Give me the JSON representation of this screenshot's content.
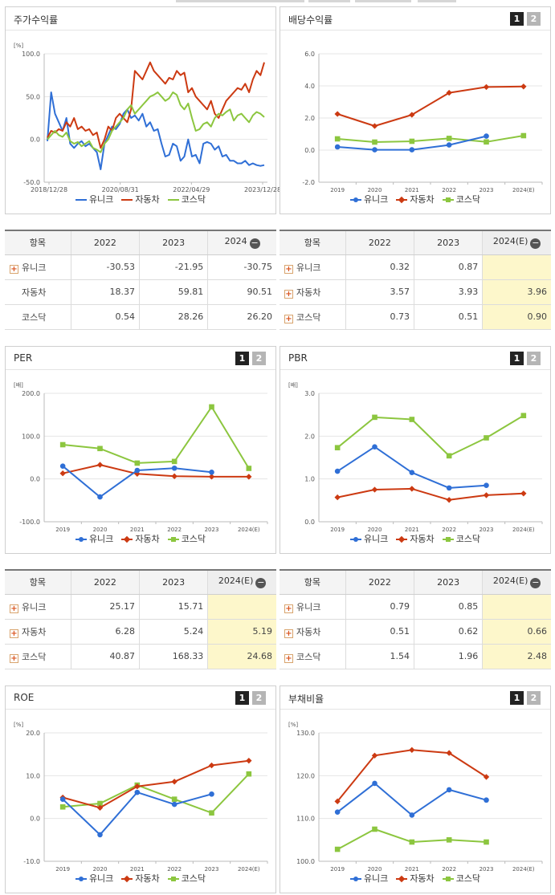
{
  "colors": {
    "unique": "#2f6fd6",
    "auto": "#cc3a12",
    "kosdaq": "#8cc63f"
  },
  "icons": {
    "page1": "page-1-button",
    "page2": "page-2-button",
    "expand": "plus-icon",
    "collapse": "minus-icon"
  },
  "series_names": [
    "유니크",
    "자동차",
    "코스닥"
  ],
  "panels": {
    "stock": {
      "title": "주가수익률",
      "unit": "[%]",
      "chart_data": {
        "type": "line",
        "y_ticks": [
          "100.0",
          "50.0",
          "0.0",
          "-50.0"
        ],
        "ylim": [
          -50,
          100
        ],
        "x_labels": [
          "2018/12/28",
          "2020/08/31",
          "2022/04/29",
          "2023/12/28"
        ],
        "series": [
          {
            "name": "유니크",
            "values": [
              -2,
              55,
              30,
              20,
              10,
              25,
              -5,
              -10,
              -5,
              -2,
              -8,
              -5,
              -10,
              -15,
              -35,
              -5,
              5,
              15,
              12,
              18,
              30,
              35,
              25,
              28,
              22,
              30,
              15,
              20,
              10,
              12,
              -5,
              -20,
              -18,
              -5,
              -8,
              -25,
              -20,
              0,
              -20,
              -18,
              -28,
              -5,
              -3,
              -5,
              -12,
              -8,
              -20,
              -18,
              -25,
              -25,
              -28,
              -28,
              -25,
              -30,
              -28,
              -30,
              -31,
              -30
            ]
          },
          {
            "name": "자동차",
            "values": [
              2,
              10,
              8,
              12,
              10,
              20,
              15,
              25,
              12,
              15,
              10,
              12,
              5,
              8,
              -10,
              0,
              15,
              10,
              25,
              30,
              25,
              20,
              35,
              80,
              75,
              70,
              80,
              90,
              80,
              75,
              70,
              65,
              72,
              70,
              80,
              75,
              78,
              55,
              60,
              50,
              45,
              40,
              35,
              45,
              30,
              25,
              35,
              45,
              50,
              55,
              60,
              58,
              65,
              55,
              70,
              80,
              75,
              90
            ]
          },
          {
            "name": "코스닥",
            "values": [
              0,
              5,
              10,
              5,
              3,
              8,
              -2,
              -5,
              -3,
              -8,
              -5,
              -2,
              -10,
              -12,
              -15,
              -5,
              0,
              10,
              15,
              20,
              25,
              35,
              40,
              30,
              35,
              40,
              45,
              50,
              52,
              55,
              50,
              45,
              48,
              55,
              52,
              40,
              35,
              42,
              25,
              10,
              12,
              18,
              20,
              15,
              25,
              30,
              28,
              32,
              35,
              22,
              28,
              30,
              25,
              20,
              28,
              32,
              30,
              26
            ]
          }
        ]
      },
      "table": {
        "headers": [
          "항목",
          "2022",
          "2023",
          "2024"
        ],
        "rows": [
          {
            "name": "유니크",
            "values": [
              "-30.53",
              "-21.95",
              "-30.75"
            ]
          },
          {
            "name": "자동차",
            "values": [
              "18.37",
              "59.81",
              "90.51"
            ]
          },
          {
            "name": "코스닥",
            "values": [
              "0.54",
              "28.26",
              "26.20"
            ]
          }
        ]
      }
    },
    "dividend": {
      "title": "배당수익률",
      "unit": "",
      "page_labels": [
        "1",
        "2"
      ],
      "chart_data": {
        "type": "line",
        "y_ticks": [
          "6.0",
          "4.0",
          "2.0",
          "0.0",
          "-2.0"
        ],
        "ylim": [
          -2,
          6
        ],
        "x": [
          "2019",
          "2020",
          "2021",
          "2022",
          "2023",
          "2024(E)"
        ],
        "series": [
          {
            "name": "유니크",
            "values": [
              0.2,
              0.02,
              0.02,
              0.32,
              0.87,
              null
            ]
          },
          {
            "name": "자동차",
            "values": [
              2.25,
              1.5,
              2.2,
              3.57,
              3.93,
              3.96
            ]
          },
          {
            "name": "코스닥",
            "values": [
              0.7,
              0.5,
              0.55,
              0.73,
              0.51,
              0.9
            ]
          }
        ]
      },
      "table": {
        "headers": [
          "항목",
          "2022",
          "2023",
          "2024(E)"
        ],
        "rows": [
          {
            "name": "유니크",
            "values": [
              "0.32",
              "0.87",
              ""
            ]
          },
          {
            "name": "자동차",
            "values": [
              "3.57",
              "3.93",
              "3.96"
            ]
          },
          {
            "name": "코스닥",
            "values": [
              "0.73",
              "0.51",
              "0.90"
            ]
          }
        ]
      }
    },
    "per": {
      "title": "PER",
      "unit": "[배]",
      "page_labels": [
        "1",
        "2"
      ],
      "chart_data": {
        "type": "line",
        "y_ticks": [
          "200.0",
          "100.0",
          "0.0",
          "-100.0"
        ],
        "ylim": [
          -100,
          200
        ],
        "x": [
          "2019",
          "2020",
          "2021",
          "2022",
          "2023",
          "2024(E)"
        ],
        "series": [
          {
            "name": "유니크",
            "values": [
              30,
              -42,
              20,
              25.17,
              15.71,
              null
            ]
          },
          {
            "name": "자동차",
            "values": [
              13,
              33,
              12,
              6.28,
              5.24,
              5.19
            ]
          },
          {
            "name": "코스닥",
            "values": [
              80,
              71,
              37,
              40.87,
              168.33,
              24.68
            ]
          }
        ]
      },
      "table": {
        "headers": [
          "항목",
          "2022",
          "2023",
          "2024(E)"
        ],
        "rows": [
          {
            "name": "유니크",
            "values": [
              "25.17",
              "15.71",
              ""
            ]
          },
          {
            "name": "자동차",
            "values": [
              "6.28",
              "5.24",
              "5.19"
            ]
          },
          {
            "name": "코스닥",
            "values": [
              "40.87",
              "168.33",
              "24.68"
            ]
          }
        ]
      }
    },
    "pbr": {
      "title": "PBR",
      "unit": "[배]",
      "page_labels": [
        "1",
        "2"
      ],
      "chart_data": {
        "type": "line",
        "y_ticks": [
          "3.0",
          "2.0",
          "1.0",
          "0.0"
        ],
        "ylim": [
          0,
          3
        ],
        "x": [
          "2019",
          "2020",
          "2021",
          "2022",
          "2023",
          "2024(E)"
        ],
        "series": [
          {
            "name": "유니크",
            "values": [
              1.18,
              1.75,
              1.15,
              0.79,
              0.85,
              null
            ]
          },
          {
            "name": "자동차",
            "values": [
              0.57,
              0.75,
              0.77,
              0.51,
              0.62,
              0.66
            ]
          },
          {
            "name": "코스닥",
            "values": [
              1.73,
              2.44,
              2.39,
              1.54,
              1.96,
              2.48
            ]
          }
        ]
      },
      "table": {
        "headers": [
          "항목",
          "2022",
          "2023",
          "2024(E)"
        ],
        "rows": [
          {
            "name": "유니크",
            "values": [
              "0.79",
              "0.85",
              ""
            ]
          },
          {
            "name": "자동차",
            "values": [
              "0.51",
              "0.62",
              "0.66"
            ]
          },
          {
            "name": "코스닥",
            "values": [
              "1.54",
              "1.96",
              "2.48"
            ]
          }
        ]
      }
    },
    "roe": {
      "title": "ROE",
      "unit": "[%]",
      "page_labels": [
        "1",
        "2"
      ],
      "chart_data": {
        "type": "line",
        "y_ticks": [
          "20.0",
          "10.0",
          "0.0",
          "-10.0"
        ],
        "ylim": [
          -10,
          20
        ],
        "x": [
          "2019",
          "2020",
          "2021",
          "2022",
          "2023",
          "2024(E)"
        ],
        "series": [
          {
            "name": "유니크",
            "values": [
              4.5,
              -3.8,
              6.1,
              3.3,
              5.7,
              null
            ]
          },
          {
            "name": "자동차",
            "values": [
              4.9,
              2.5,
              7.5,
              8.6,
              12.4,
              13.5
            ]
          },
          {
            "name": "코스닥",
            "values": [
              2.7,
              3.5,
              7.8,
              4.5,
              1.3,
              10.4
            ]
          }
        ]
      }
    },
    "debt": {
      "title": "부채비율",
      "unit": "[%]",
      "page_labels": [
        "1",
        "2"
      ],
      "chart_data": {
        "type": "line",
        "y_ticks": [
          "130.0",
          "120.0",
          "110.0",
          "100.0"
        ],
        "ylim": [
          100,
          130
        ],
        "x": [
          "2019",
          "2020",
          "2021",
          "2022",
          "2023",
          "2024(E)"
        ],
        "series": [
          {
            "name": "유니크",
            "values": [
              111.5,
              118.2,
              110.8,
              116.7,
              114.3,
              null
            ]
          },
          {
            "name": "자동차",
            "values": [
              114.0,
              124.7,
              126.0,
              125.3,
              119.7,
              null
            ]
          },
          {
            "name": "코스닥",
            "values": [
              102.8,
              107.5,
              104.5,
              105.0,
              104.5,
              null
            ]
          }
        ]
      }
    }
  }
}
